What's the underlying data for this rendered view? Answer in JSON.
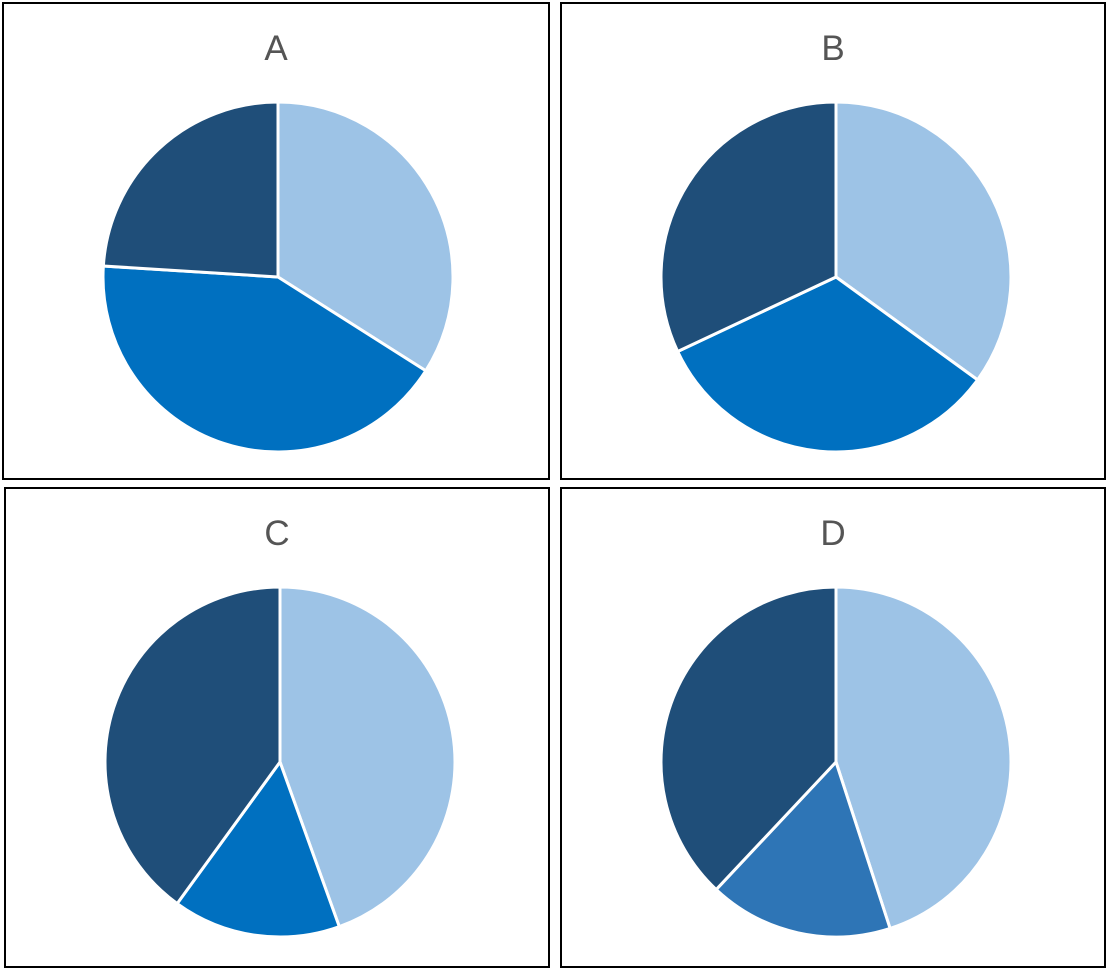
{
  "chart_data": [
    {
      "type": "pie",
      "title": "A",
      "slices": [
        {
          "value": 34,
          "color": "#9dc3e6"
        },
        {
          "value": 42,
          "color": "#0070c0"
        },
        {
          "value": 24,
          "color": "#1f4e79"
        }
      ]
    },
    {
      "type": "pie",
      "title": "B",
      "slices": [
        {
          "value": 35,
          "color": "#9dc3e6"
        },
        {
          "value": 33,
          "color": "#0070c0"
        },
        {
          "value": 32,
          "color": "#1f4e79"
        }
      ]
    },
    {
      "type": "pie",
      "title": "C",
      "slices": [
        {
          "value": 44.5,
          "color": "#9dc3e6"
        },
        {
          "value": 15.5,
          "color": "#0070c0"
        },
        {
          "value": 40,
          "color": "#1f4e79"
        }
      ]
    },
    {
      "type": "pie",
      "title": "D",
      "slices": [
        {
          "value": 45,
          "color": "#9dc3e6"
        },
        {
          "value": 17,
          "color": "#2e75b6"
        },
        {
          "value": 38,
          "color": "#1f4e79"
        }
      ]
    }
  ]
}
